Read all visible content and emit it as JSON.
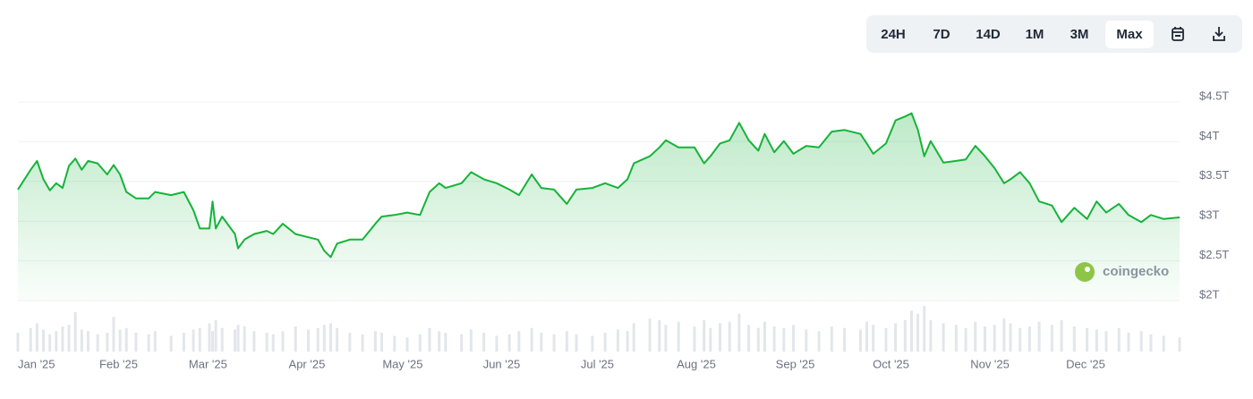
{
  "chart_data": {
    "type": "line",
    "controls": {
      "ranges": [
        "24H",
        "7D",
        "14D",
        "1M",
        "3M",
        "Max"
      ],
      "selected": 5
    },
    "watermark": "coingecko",
    "x": [
      0,
      4,
      6,
      8,
      10,
      12,
      14,
      16,
      18,
      20,
      22,
      25,
      28,
      30,
      32,
      34,
      37,
      41,
      43,
      48,
      52,
      55,
      57,
      60,
      61,
      62,
      64,
      68,
      69,
      71,
      74,
      78,
      80,
      83,
      87,
      91,
      94,
      96,
      98,
      100,
      104,
      108,
      112,
      114,
      118,
      122,
      126,
      129,
      132,
      134,
      139,
      142,
      146,
      150,
      154,
      157,
      161,
      164,
      168,
      172,
      175,
      180,
      184,
      188,
      191,
      193,
      198,
      201,
      203,
      207,
      212,
      215,
      217,
      220,
      223,
      226,
      229,
      232,
      234,
      237,
      240,
      243,
      247,
      251,
      255,
      259,
      264,
      266,
      268,
      272,
      275,
      278,
      280,
      282,
      284,
      286,
      290,
      294,
      297,
      300,
      303,
      306,
      309,
      311,
      314,
      317,
      320,
      324,
      327,
      331,
      335,
      338,
      341,
      345,
      348,
      352,
      355,
      359,
      364
    ],
    "values": [
      3.33,
      3.58,
      3.69,
      3.46,
      3.32,
      3.41,
      3.35,
      3.63,
      3.72,
      3.58,
      3.69,
      3.66,
      3.52,
      3.64,
      3.52,
      3.3,
      3.22,
      3.22,
      3.3,
      3.26,
      3.3,
      3.07,
      2.84,
      2.84,
      3.18,
      2.84,
      2.99,
      2.77,
      2.59,
      2.7,
      2.77,
      2.81,
      2.77,
      2.9,
      2.77,
      2.73,
      2.7,
      2.56,
      2.48,
      2.65,
      2.7,
      2.7,
      2.9,
      2.99,
      3.01,
      3.04,
      3.01,
      3.3,
      3.41,
      3.35,
      3.41,
      3.55,
      3.46,
      3.41,
      3.33,
      3.26,
      3.52,
      3.35,
      3.33,
      3.15,
      3.33,
      3.35,
      3.41,
      3.35,
      3.46,
      3.66,
      3.75,
      3.86,
      3.95,
      3.86,
      3.86,
      3.66,
      3.75,
      3.91,
      3.95,
      4.17,
      3.95,
      3.82,
      4.03,
      3.8,
      3.94,
      3.78,
      3.88,
      3.86,
      4.06,
      4.08,
      4.03,
      3.91,
      3.78,
      3.91,
      4.2,
      4.25,
      4.29,
      4.08,
      3.75,
      3.94,
      3.67,
      3.69,
      3.71,
      3.88,
      3.75,
      3.6,
      3.41,
      3.46,
      3.55,
      3.41,
      3.18,
      3.13,
      2.92,
      3.1,
      2.96,
      3.18,
      3.04,
      3.15,
      3.01,
      2.92,
      3.01,
      2.96,
      2.98
    ],
    "volume": [
      120,
      150,
      180,
      140,
      110,
      130,
      160,
      170,
      250,
      140,
      130,
      110,
      120,
      220,
      140,
      150,
      120,
      110,
      130,
      100,
      120,
      140,
      150,
      180,
      130,
      200,
      150,
      140,
      170,
      160,
      130,
      120,
      110,
      130,
      160,
      140,
      150,
      170,
      180,
      150,
      120,
      110,
      130,
      120,
      100,
      90,
      110,
      150,
      130,
      120,
      110,
      140,
      120,
      100,
      110,
      130,
      150,
      120,
      110,
      130,
      110,
      100,
      120,
      140,
      130,
      180,
      210,
      200,
      170,
      190,
      160,
      200,
      150,
      180,
      190,
      240,
      170,
      150,
      190,
      160,
      150,
      170,
      140,
      130,
      160,
      150,
      140,
      190,
      170,
      150,
      180,
      200,
      260,
      240,
      290,
      200,
      180,
      170,
      150,
      190,
      160,
      170,
      210,
      180,
      150,
      160,
      190,
      170,
      200,
      160,
      150,
      140,
      130,
      150,
      120,
      130,
      110,
      100,
      90
    ],
    "color": "#16b33a",
    "volume_color": "#e3e6ea",
    "xlim": [
      0,
      364
    ],
    "xticks": [
      {
        "value": 0,
        "label": "Jan '25"
      },
      {
        "value": 31,
        "label": "Feb '25"
      },
      {
        "value": 59,
        "label": "Mar '25"
      },
      {
        "value": 90,
        "label": "Apr '25"
      },
      {
        "value": 120,
        "label": "May '25"
      },
      {
        "value": 151,
        "label": "Jun '25"
      },
      {
        "value": 181,
        "label": "Jul '25"
      },
      {
        "value": 212,
        "label": "Aug '25"
      },
      {
        "value": 243,
        "label": "Sep '25"
      },
      {
        "value": 273,
        "label": "Oct '25"
      },
      {
        "value": 304,
        "label": "Nov '25"
      },
      {
        "value": 334,
        "label": "Dec '25"
      }
    ],
    "ylim": [
      2,
      4.5
    ],
    "yticks": [
      {
        "value": 2,
        "label": "$2T"
      },
      {
        "value": 2.5,
        "label": "$2.5T"
      },
      {
        "value": 3,
        "label": "$3T"
      },
      {
        "value": 3.5,
        "label": "$3.5T"
      },
      {
        "value": 4,
        "label": "$4T"
      },
      {
        "value": 4.5,
        "label": "$4.5T"
      }
    ],
    "grid": true
  }
}
